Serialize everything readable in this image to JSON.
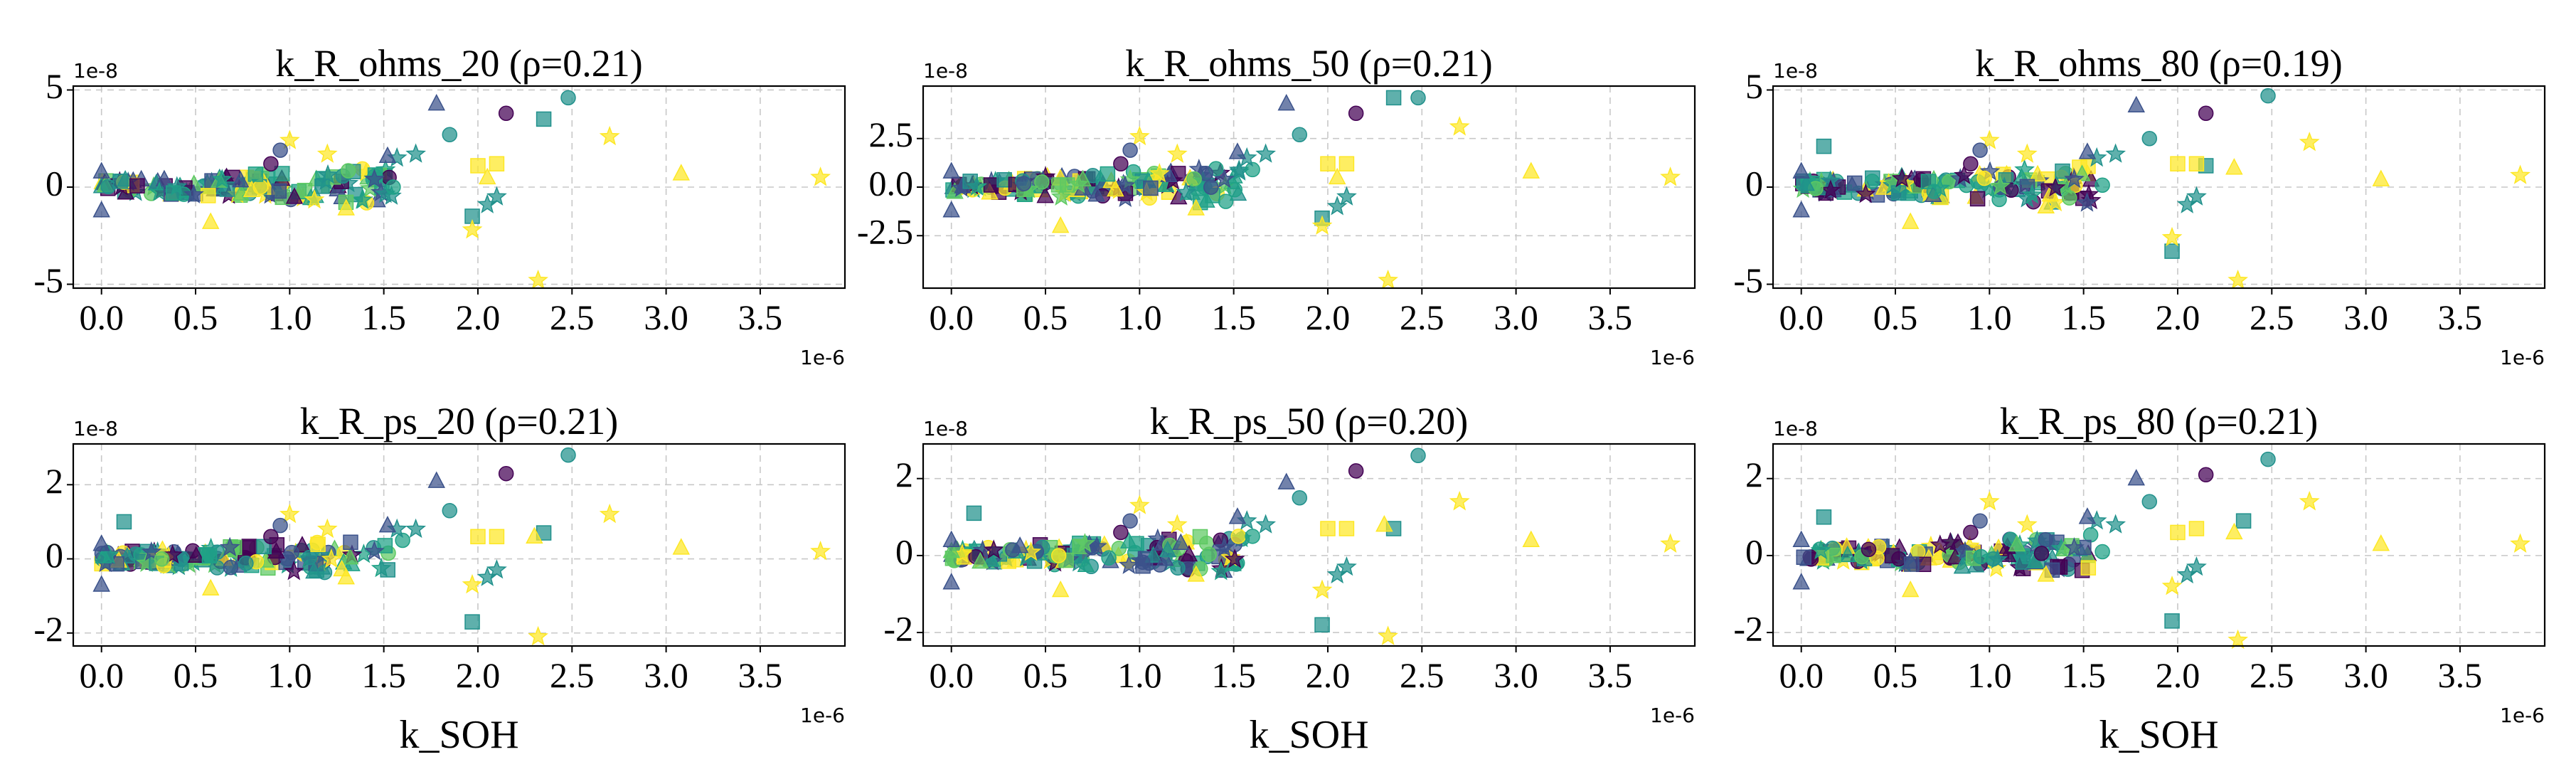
{
  "figure": {
    "marker_colors": [
      "#440154",
      "#3b528b",
      "#21918c",
      "#1fa187",
      "#fde725",
      "#5ec962"
    ],
    "marker_shapes": [
      "circle",
      "square",
      "triangle",
      "star"
    ]
  },
  "chart_data": [
    {
      "type": "scatter",
      "title": "k_R_ohms_20 (ρ=0.21)",
      "xlabel": "",
      "x_offset_label": "1e-6",
      "y_offset_label": "1e-8",
      "xlim": [
        -0.15,
        3.95
      ],
      "ylim": [
        -5.2,
        5.2
      ],
      "xticks": [
        0.0,
        0.5,
        1.0,
        1.5,
        2.0,
        2.5,
        3.0,
        3.5
      ],
      "xtick_labels": [
        "0.0",
        "0.5",
        "1.0",
        "1.5",
        "2.0",
        "2.5",
        "3.0",
        "3.5"
      ],
      "yticks": [
        -5,
        0,
        5
      ],
      "ytick_labels": [
        "-5",
        "0",
        "5"
      ],
      "grid": true,
      "y_scale": 2.0,
      "points": [
        [
          0.0,
          0.8,
          1,
          "triangle"
        ],
        [
          0.0,
          -1.2,
          1,
          "triangle"
        ],
        [
          0.1,
          0.3,
          2,
          "square"
        ],
        [
          1.78,
          4.3,
          1,
          "triangle"
        ],
        [
          1.85,
          2.7,
          2,
          "circle"
        ],
        [
          2.15,
          3.8,
          0,
          "circle"
        ],
        [
          2.48,
          4.6,
          2,
          "circle"
        ],
        [
          2.35,
          3.5,
          2,
          "square"
        ],
        [
          1.97,
          -1.5,
          2,
          "square"
        ],
        [
          2.0,
          1.1,
          4,
          "square"
        ],
        [
          2.1,
          1.2,
          4,
          "square"
        ],
        [
          2.05,
          0.5,
          4,
          "triangle"
        ],
        [
          1.97,
          -2.2,
          4,
          "star"
        ],
        [
          2.32,
          -4.8,
          4,
          "star"
        ],
        [
          2.7,
          2.6,
          4,
          "star"
        ],
        [
          3.08,
          0.7,
          4,
          "triangle"
        ],
        [
          3.82,
          0.5,
          4,
          "star"
        ],
        [
          1.0,
          2.4,
          4,
          "star"
        ],
        [
          0.58,
          -1.8,
          4,
          "triangle"
        ],
        [
          1.3,
          -1.1,
          4,
          "triangle"
        ],
        [
          1.67,
          1.7,
          2,
          "star"
        ],
        [
          1.55,
          0.0,
          3,
          "circle"
        ],
        [
          1.57,
          1.5,
          2,
          "star"
        ],
        [
          2.1,
          -0.5,
          2,
          "star"
        ],
        [
          2.05,
          -0.9,
          2,
          "star"
        ],
        [
          1.52,
          1.6,
          1,
          "triangle"
        ],
        [
          1.45,
          0.4,
          1,
          "star"
        ],
        [
          1.2,
          1.7,
          4,
          "star"
        ],
        [
          0.95,
          1.9,
          1,
          "circle"
        ],
        [
          0.9,
          1.2,
          0,
          "circle"
        ]
      ]
    },
    {
      "type": "scatter",
      "title": "k_R_ohms_50 (ρ=0.21)",
      "xlabel": "",
      "x_offset_label": "1e-6",
      "y_offset_label": "1e-8",
      "xlim": [
        -0.15,
        3.95
      ],
      "ylim": [
        -5.2,
        5.2
      ],
      "xticks": [
        0.0,
        0.5,
        1.0,
        1.5,
        2.0,
        2.5,
        3.0,
        3.5
      ],
      "xtick_labels": [
        "0.0",
        "0.5",
        "1.0",
        "1.5",
        "2.0",
        "2.5",
        "3.0",
        "3.5"
      ],
      "yticks": [
        -2.5,
        0.0,
        2.5
      ],
      "ytick_labels": [
        "-2.5",
        "0.0",
        "2.5"
      ],
      "grid": true,
      "y_scale": 2.0,
      "points": [
        [
          0.0,
          0.8,
          1,
          "triangle"
        ],
        [
          0.0,
          -1.2,
          1,
          "triangle"
        ],
        [
          0.1,
          0.3,
          2,
          "square"
        ],
        [
          1.78,
          4.3,
          1,
          "triangle"
        ],
        [
          1.85,
          2.7,
          2,
          "circle"
        ],
        [
          2.15,
          3.8,
          0,
          "circle"
        ],
        [
          2.48,
          4.6,
          2,
          "circle"
        ],
        [
          2.35,
          4.6,
          2,
          "square"
        ],
        [
          1.97,
          -1.6,
          2,
          "square"
        ],
        [
          2.0,
          1.2,
          4,
          "square"
        ],
        [
          2.1,
          1.2,
          4,
          "square"
        ],
        [
          2.05,
          0.5,
          4,
          "triangle"
        ],
        [
          1.97,
          -2.0,
          4,
          "star"
        ],
        [
          2.32,
          -4.8,
          4,
          "star"
        ],
        [
          2.7,
          3.1,
          4,
          "star"
        ],
        [
          3.08,
          0.8,
          4,
          "triangle"
        ],
        [
          3.82,
          0.5,
          4,
          "star"
        ],
        [
          1.0,
          2.6,
          4,
          "star"
        ],
        [
          0.58,
          -2.0,
          4,
          "triangle"
        ],
        [
          1.3,
          -1.1,
          4,
          "triangle"
        ],
        [
          1.67,
          1.7,
          2,
          "star"
        ],
        [
          1.6,
          0.9,
          3,
          "circle"
        ],
        [
          1.57,
          1.5,
          2,
          "star"
        ],
        [
          2.1,
          -0.5,
          2,
          "star"
        ],
        [
          2.05,
          -1.0,
          2,
          "star"
        ],
        [
          1.52,
          1.8,
          1,
          "triangle"
        ],
        [
          1.45,
          0.4,
          1,
          "star"
        ],
        [
          1.2,
          1.7,
          4,
          "star"
        ],
        [
          0.95,
          1.9,
          1,
          "circle"
        ],
        [
          0.9,
          1.2,
          0,
          "circle"
        ]
      ]
    },
    {
      "type": "scatter",
      "title": "k_R_ohms_80 (ρ=0.19)",
      "xlabel": "",
      "x_offset_label": "1e-6",
      "y_offset_label": "1e-8",
      "xlim": [
        -0.15,
        3.95
      ],
      "ylim": [
        -5.2,
        5.2
      ],
      "xticks": [
        0.0,
        0.5,
        1.0,
        1.5,
        2.0,
        2.5,
        3.0,
        3.5
      ],
      "xtick_labels": [
        "0.0",
        "0.5",
        "1.0",
        "1.5",
        "2.0",
        "2.5",
        "3.0",
        "3.5"
      ],
      "yticks": [
        -5,
        0,
        5
      ],
      "ytick_labels": [
        "-5",
        "0",
        "5"
      ],
      "grid": true,
      "y_scale": 2.0,
      "points": [
        [
          0.0,
          0.8,
          1,
          "triangle"
        ],
        [
          0.0,
          -1.2,
          1,
          "triangle"
        ],
        [
          0.12,
          2.1,
          2,
          "square"
        ],
        [
          1.78,
          4.2,
          1,
          "triangle"
        ],
        [
          1.85,
          2.5,
          2,
          "circle"
        ],
        [
          2.15,
          3.8,
          0,
          "circle"
        ],
        [
          2.48,
          4.7,
          2,
          "circle"
        ],
        [
          2.15,
          1.1,
          2,
          "square"
        ],
        [
          1.97,
          -3.3,
          2,
          "square"
        ],
        [
          2.0,
          1.2,
          4,
          "square"
        ],
        [
          2.1,
          1.2,
          4,
          "square"
        ],
        [
          2.3,
          1.0,
          4,
          "triangle"
        ],
        [
          1.97,
          -2.6,
          4,
          "star"
        ],
        [
          2.32,
          -4.8,
          4,
          "star"
        ],
        [
          2.7,
          2.3,
          4,
          "star"
        ],
        [
          3.08,
          0.4,
          4,
          "triangle"
        ],
        [
          3.82,
          0.6,
          4,
          "star"
        ],
        [
          1.0,
          2.4,
          4,
          "star"
        ],
        [
          0.58,
          -1.8,
          4,
          "triangle"
        ],
        [
          1.3,
          -1.0,
          4,
          "triangle"
        ],
        [
          1.67,
          1.7,
          2,
          "star"
        ],
        [
          1.6,
          0.1,
          3,
          "circle"
        ],
        [
          1.57,
          1.5,
          2,
          "star"
        ],
        [
          2.1,
          -0.5,
          2,
          "star"
        ],
        [
          2.05,
          -0.9,
          2,
          "star"
        ],
        [
          1.52,
          1.8,
          1,
          "triangle"
        ],
        [
          1.45,
          0.4,
          1,
          "star"
        ],
        [
          1.2,
          1.7,
          4,
          "star"
        ],
        [
          0.95,
          1.9,
          1,
          "circle"
        ],
        [
          0.9,
          1.2,
          0,
          "circle"
        ]
      ]
    },
    {
      "type": "scatter",
      "title": "k_R_ps_20 (ρ=0.21)",
      "xlabel": "k_SOH",
      "x_offset_label": "1e-6",
      "y_offset_label": "1e-8",
      "xlim": [
        -0.15,
        3.95
      ],
      "ylim": [
        -2.35,
        3.1
      ],
      "xticks": [
        0.0,
        0.5,
        1.0,
        1.5,
        2.0,
        2.5,
        3.0,
        3.5
      ],
      "xtick_labels": [
        "0.0",
        "0.5",
        "1.0",
        "1.5",
        "2.0",
        "2.5",
        "3.0",
        "3.5"
      ],
      "yticks": [
        -2,
        0,
        2
      ],
      "ytick_labels": [
        "-2",
        "0",
        "2"
      ],
      "grid": true,
      "y_scale": 1.0,
      "points": [
        [
          0.0,
          0.4,
          1,
          "triangle"
        ],
        [
          0.0,
          -0.7,
          1,
          "triangle"
        ],
        [
          0.12,
          1.0,
          2,
          "square"
        ],
        [
          1.78,
          2.1,
          1,
          "triangle"
        ],
        [
          1.85,
          1.3,
          2,
          "circle"
        ],
        [
          2.15,
          2.3,
          0,
          "circle"
        ],
        [
          2.48,
          2.8,
          2,
          "circle"
        ],
        [
          2.35,
          0.7,
          2,
          "square"
        ],
        [
          1.97,
          -1.7,
          2,
          "square"
        ],
        [
          2.0,
          0.6,
          4,
          "square"
        ],
        [
          2.1,
          0.6,
          4,
          "square"
        ],
        [
          2.3,
          0.6,
          4,
          "triangle"
        ],
        [
          1.97,
          -0.7,
          4,
          "star"
        ],
        [
          2.32,
          -2.1,
          4,
          "star"
        ],
        [
          2.7,
          1.2,
          4,
          "star"
        ],
        [
          3.08,
          0.3,
          4,
          "triangle"
        ],
        [
          3.82,
          0.2,
          4,
          "star"
        ],
        [
          1.0,
          1.2,
          4,
          "star"
        ],
        [
          0.58,
          -0.8,
          4,
          "triangle"
        ],
        [
          1.3,
          -0.5,
          4,
          "triangle"
        ],
        [
          1.67,
          0.8,
          2,
          "star"
        ],
        [
          1.6,
          0.5,
          3,
          "circle"
        ],
        [
          1.57,
          0.8,
          2,
          "star"
        ],
        [
          2.1,
          -0.3,
          2,
          "star"
        ],
        [
          2.05,
          -0.5,
          2,
          "star"
        ],
        [
          1.52,
          0.9,
          1,
          "triangle"
        ],
        [
          1.45,
          0.2,
          1,
          "star"
        ],
        [
          1.2,
          0.8,
          4,
          "star"
        ],
        [
          0.95,
          0.9,
          1,
          "circle"
        ],
        [
          0.9,
          0.6,
          0,
          "circle"
        ]
      ]
    },
    {
      "type": "scatter",
      "title": "k_R_ps_50 (ρ=0.20)",
      "xlabel": "k_SOH",
      "x_offset_label": "1e-6",
      "y_offset_label": "1e-8",
      "xlim": [
        -0.15,
        3.95
      ],
      "ylim": [
        -2.35,
        2.9
      ],
      "xticks": [
        0.0,
        0.5,
        1.0,
        1.5,
        2.0,
        2.5,
        3.0,
        3.5
      ],
      "xtick_labels": [
        "0.0",
        "0.5",
        "1.0",
        "1.5",
        "2.0",
        "2.5",
        "3.0",
        "3.5"
      ],
      "yticks": [
        -2,
        0,
        2
      ],
      "ytick_labels": [
        "-2",
        "0",
        "2"
      ],
      "grid": true,
      "y_scale": 1.0,
      "points": [
        [
          0.0,
          0.4,
          1,
          "triangle"
        ],
        [
          0.0,
          -0.7,
          1,
          "triangle"
        ],
        [
          0.12,
          1.1,
          2,
          "square"
        ],
        [
          1.78,
          1.9,
          1,
          "triangle"
        ],
        [
          1.85,
          1.5,
          2,
          "circle"
        ],
        [
          2.15,
          2.2,
          0,
          "circle"
        ],
        [
          2.48,
          2.6,
          2,
          "circle"
        ],
        [
          2.35,
          0.7,
          2,
          "square"
        ],
        [
          1.97,
          -1.8,
          2,
          "square"
        ],
        [
          2.0,
          0.7,
          4,
          "square"
        ],
        [
          2.1,
          0.7,
          4,
          "square"
        ],
        [
          2.3,
          0.8,
          4,
          "triangle"
        ],
        [
          1.97,
          -0.9,
          4,
          "star"
        ],
        [
          2.32,
          -2.1,
          4,
          "star"
        ],
        [
          2.7,
          1.4,
          4,
          "star"
        ],
        [
          3.08,
          0.4,
          4,
          "triangle"
        ],
        [
          3.82,
          0.3,
          4,
          "star"
        ],
        [
          1.0,
          1.3,
          4,
          "star"
        ],
        [
          0.58,
          -0.9,
          4,
          "triangle"
        ],
        [
          1.3,
          -0.5,
          4,
          "triangle"
        ],
        [
          1.67,
          0.8,
          2,
          "star"
        ],
        [
          1.6,
          0.5,
          3,
          "circle"
        ],
        [
          1.57,
          0.9,
          2,
          "star"
        ],
        [
          2.1,
          -0.3,
          2,
          "star"
        ],
        [
          2.05,
          -0.5,
          2,
          "star"
        ],
        [
          1.52,
          1.0,
          1,
          "triangle"
        ],
        [
          1.45,
          0.2,
          1,
          "star"
        ],
        [
          1.2,
          0.8,
          4,
          "star"
        ],
        [
          0.95,
          0.9,
          1,
          "circle"
        ],
        [
          0.9,
          0.6,
          0,
          "circle"
        ]
      ]
    },
    {
      "type": "scatter",
      "title": "k_R_ps_80 (ρ=0.21)",
      "xlabel": "k_SOH",
      "x_offset_label": "1e-6",
      "y_offset_label": "1e-8",
      "xlim": [
        -0.15,
        3.95
      ],
      "ylim": [
        -2.35,
        2.9
      ],
      "xticks": [
        0.0,
        0.5,
        1.0,
        1.5,
        2.0,
        2.5,
        3.0,
        3.5
      ],
      "xtick_labels": [
        "0.0",
        "0.5",
        "1.0",
        "1.5",
        "2.0",
        "2.5",
        "3.0",
        "3.5"
      ],
      "yticks": [
        -2,
        0,
        2
      ],
      "ytick_labels": [
        "-2",
        "0",
        "2"
      ],
      "grid": true,
      "y_scale": 1.0,
      "points": [
        [
          0.0,
          0.4,
          1,
          "triangle"
        ],
        [
          0.0,
          -0.7,
          1,
          "triangle"
        ],
        [
          0.12,
          1.0,
          2,
          "square"
        ],
        [
          1.78,
          2.0,
          1,
          "triangle"
        ],
        [
          1.85,
          1.4,
          2,
          "circle"
        ],
        [
          2.15,
          2.1,
          0,
          "circle"
        ],
        [
          2.48,
          2.5,
          2,
          "circle"
        ],
        [
          2.35,
          0.9,
          2,
          "square"
        ],
        [
          1.97,
          -1.7,
          2,
          "square"
        ],
        [
          2.0,
          0.6,
          4,
          "square"
        ],
        [
          2.1,
          0.7,
          4,
          "square"
        ],
        [
          2.3,
          0.6,
          4,
          "triangle"
        ],
        [
          1.97,
          -0.8,
          4,
          "star"
        ],
        [
          2.32,
          -2.2,
          4,
          "star"
        ],
        [
          2.7,
          1.4,
          4,
          "star"
        ],
        [
          3.08,
          0.3,
          4,
          "triangle"
        ],
        [
          3.82,
          0.3,
          4,
          "star"
        ],
        [
          1.0,
          1.4,
          4,
          "star"
        ],
        [
          0.58,
          -0.9,
          4,
          "triangle"
        ],
        [
          1.3,
          -0.5,
          4,
          "triangle"
        ],
        [
          1.67,
          0.8,
          2,
          "star"
        ],
        [
          1.6,
          0.1,
          3,
          "circle"
        ],
        [
          1.57,
          0.9,
          2,
          "star"
        ],
        [
          2.1,
          -0.3,
          2,
          "star"
        ],
        [
          2.05,
          -0.5,
          2,
          "star"
        ],
        [
          1.52,
          1.0,
          1,
          "triangle"
        ],
        [
          1.45,
          0.2,
          1,
          "star"
        ],
        [
          1.2,
          0.8,
          4,
          "star"
        ],
        [
          0.95,
          0.9,
          1,
          "circle"
        ],
        [
          0.9,
          0.6,
          0,
          "circle"
        ]
      ]
    }
  ]
}
